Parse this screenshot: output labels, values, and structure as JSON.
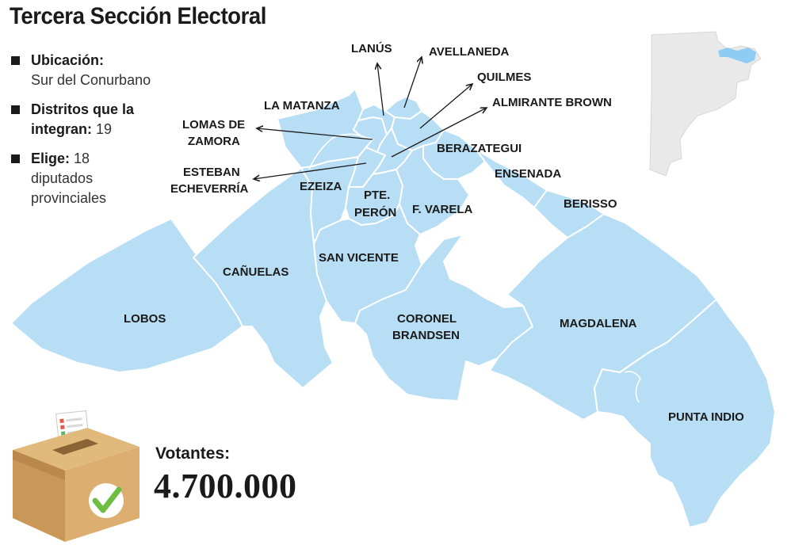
{
  "title": "Tercera Sección Electoral",
  "facts": [
    {
      "label": "Ubicación:",
      "value": "Sur del Conurbano"
    },
    {
      "label": "Distritos que la integran:",
      "value": "19"
    },
    {
      "label": "Elige:",
      "value": "18 diputados provinciales"
    }
  ],
  "fact_labels": {
    "ubicacion": "Ubicación:",
    "distritos_1": "Distritos que la",
    "distritos_2": "integran:",
    "elige": "Elige:"
  },
  "fact_values": {
    "ubicacion": "Sur del Conurbano",
    "distritos": "19",
    "elige_1": "18",
    "elige_2": "diputados",
    "elige_3": "provinciales"
  },
  "districts": {
    "lanus": "LANÚS",
    "avellaneda": "AVELLANEDA",
    "quilmes": "QUILMES",
    "almirante_brown": "ALMIRANTE BROWN",
    "la_matanza": "LA MATANZA",
    "lomas_1": "LOMAS DE",
    "lomas_2": "ZAMORA",
    "esteban_1": "ESTEBAN",
    "esteban_2": "ECHEVERRÍA",
    "berazategui": "BERAZATEGUI",
    "ensenada": "ENSENADA",
    "ezeiza": "EZEIZA",
    "pte_1": "PTE.",
    "pte_2": "PERÓN",
    "f_varela": "F. VARELA",
    "berisso": "BERISSO",
    "canuelas": "CAÑUELAS",
    "san_vicente": "SAN VICENTE",
    "lobos": "LOBOS",
    "coronel_1": "CORONEL",
    "coronel_2": "BRANDSEN",
    "magdalena": "MAGDALENA",
    "punta_indio": "PUNTA INDIO"
  },
  "votantes": {
    "label": "Votantes:",
    "value": "4.700.000"
  },
  "colors": {
    "region_fill": "#b7def5",
    "border": "#ffffff",
    "inset_province": "#e9e9e9",
    "inset_highlight": "#8fcbf2",
    "box": "#d5a86a",
    "check": "#6fbe44"
  },
  "icons": [
    "ballot-box-icon",
    "check-icon",
    "province-locator-map"
  ]
}
